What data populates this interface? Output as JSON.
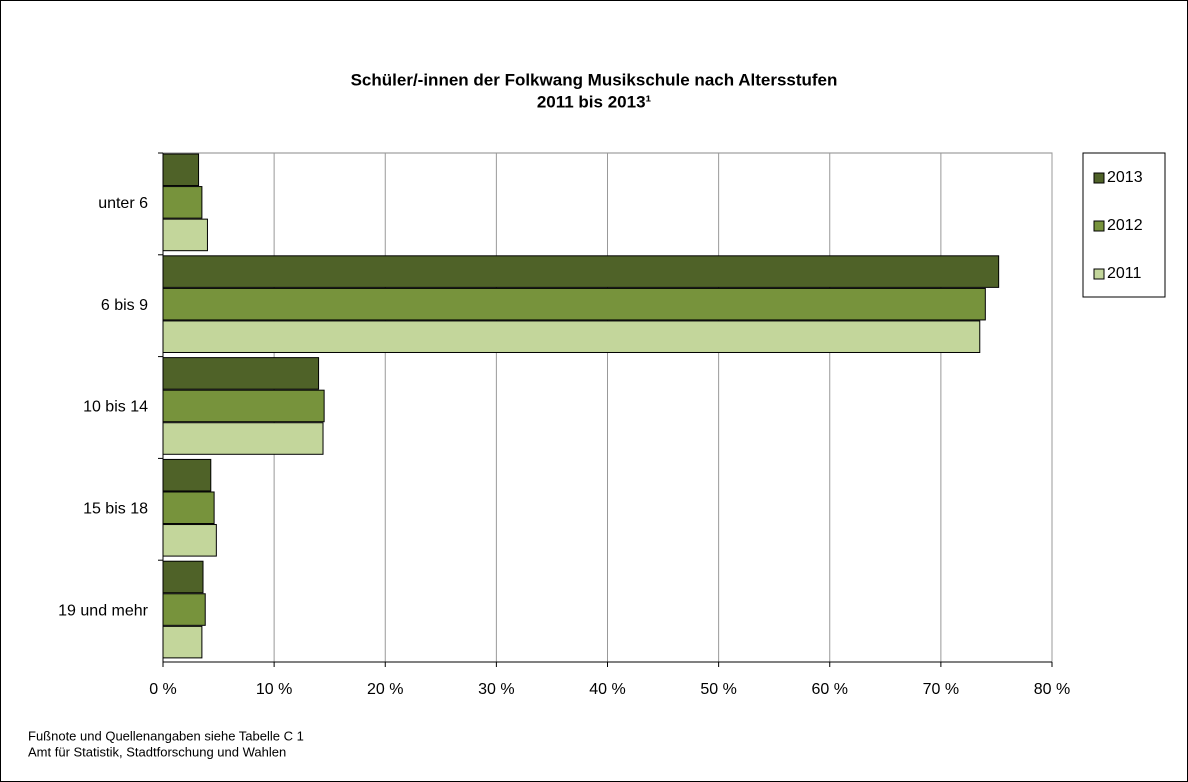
{
  "chart_data": {
    "type": "hbar",
    "title": "Schüler/-innen der Folkwang Musikschule nach Altersstufen",
    "subtitle": "2011 bis 2013¹",
    "categories": [
      "unter 6",
      "6 bis 9",
      "10 bis 14",
      "15 bis 18",
      "19 und mehr"
    ],
    "series": [
      {
        "name": "2013",
        "color": "#4f6228",
        "values": [
          3.2,
          75.2,
          14.0,
          4.3,
          3.6
        ]
      },
      {
        "name": "2012",
        "color": "#77933c",
        "values": [
          3.5,
          74.0,
          14.5,
          4.6,
          3.8
        ]
      },
      {
        "name": "2011",
        "color": "#c3d69b",
        "values": [
          4.0,
          73.5,
          14.4,
          4.8,
          3.5
        ]
      }
    ],
    "xlim": [
      0,
      80
    ],
    "xticks": [
      {
        "value": 0,
        "label": "0 %"
      },
      {
        "value": 10,
        "label": "10 %"
      },
      {
        "value": 20,
        "label": "20 %"
      },
      {
        "value": 30,
        "label": "30 %"
      },
      {
        "value": 40,
        "label": "40 %"
      },
      {
        "value": 50,
        "label": "50 %"
      },
      {
        "value": 60,
        "label": "60 %"
      },
      {
        "value": 70,
        "label": "70 %"
      },
      {
        "value": 80,
        "label": "80 %"
      }
    ],
    "grid": true,
    "legend": "right",
    "notes": [
      "Fußnote und Quellenangaben siehe Tabelle C 1",
      "Amt für Statistik, Stadtforschung und Wahlen"
    ]
  }
}
